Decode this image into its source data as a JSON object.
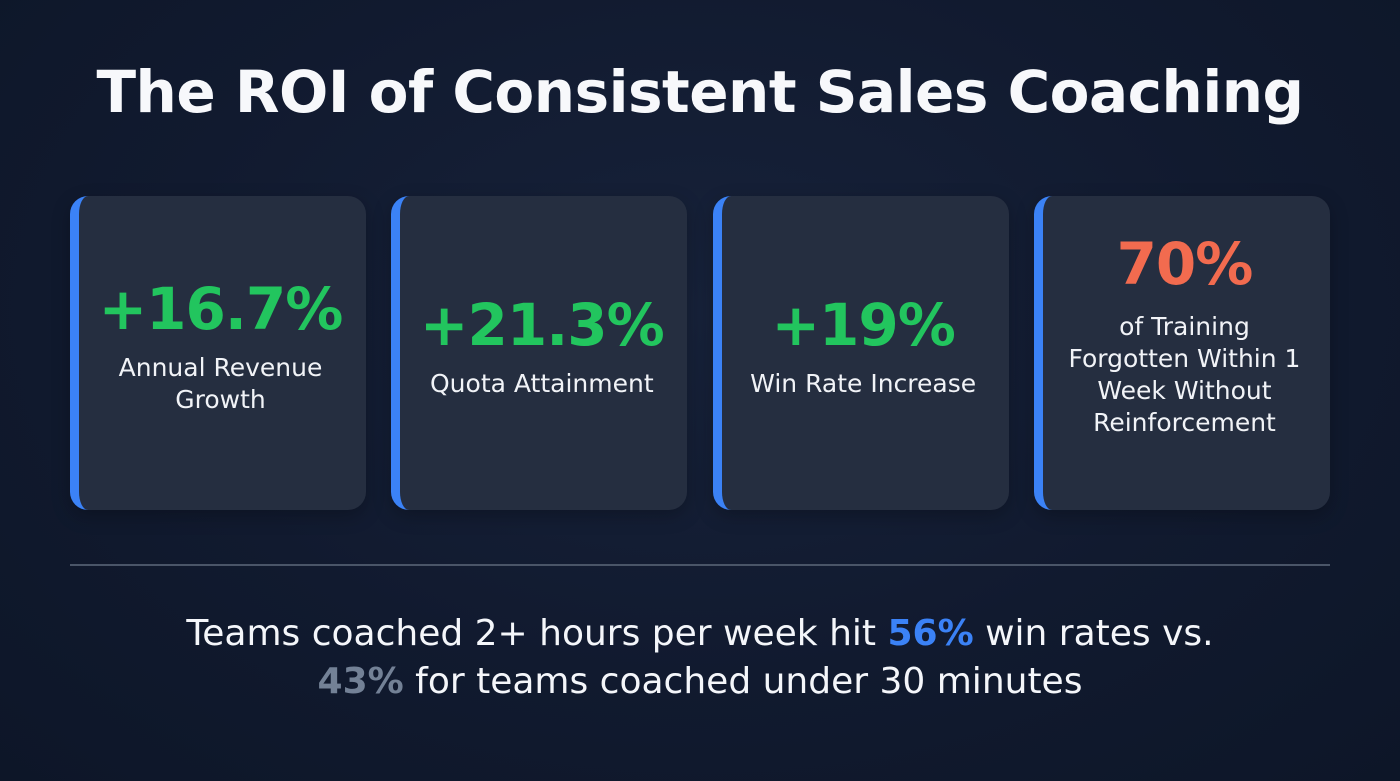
{
  "title": "The ROI of Consistent Sales Coaching",
  "colors": {
    "background": "#111a2f",
    "card_background": "#252e40",
    "card_accent_border": "#3b82f6",
    "positive_stat": "#22c55e",
    "warning_stat": "#f26b4f",
    "highlight_blue": "#3b82f6",
    "highlight_gray": "#738196",
    "divider": "#4a5568"
  },
  "cards": [
    {
      "stat": "+16.7%",
      "label": "Annual Revenue Growth",
      "label_lines": [
        "Annual Revenue",
        "Growth"
      ],
      "stat_color": "#22c55e"
    },
    {
      "stat": "+21.3%",
      "label": "Quota Attainment",
      "label_lines": [
        "Quota Attainment"
      ],
      "stat_color": "#22c55e"
    },
    {
      "stat": "+19%",
      "label": "Win Rate Increase",
      "label_lines": [
        "Win Rate Increase"
      ],
      "stat_color": "#22c55e"
    },
    {
      "stat": "70%",
      "label": "of Training Forgotten Within 1 Week Without Reinforcement",
      "label_lines": [
        "of Training",
        "Forgotten Within 1",
        "Week Without",
        "Reinforcement"
      ],
      "stat_color": "#f26b4f"
    }
  ],
  "footer": {
    "part1": "Teams coached 2+ hours per week hit ",
    "highlight1": "56%",
    "part2": " win rates vs.",
    "highlight2": "43%",
    "part3": " for teams coached under 30 minutes"
  }
}
